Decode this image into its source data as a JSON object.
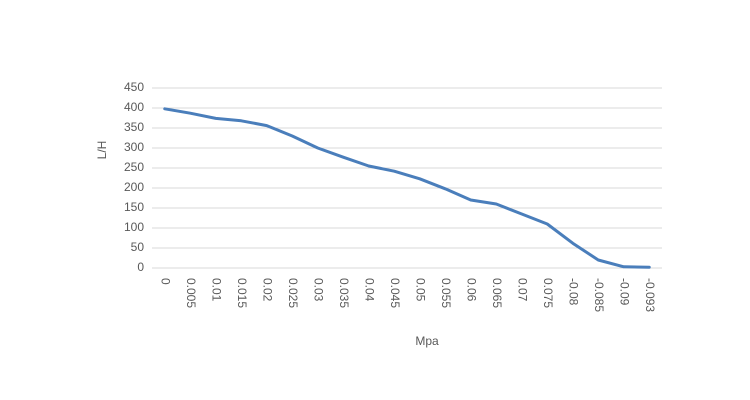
{
  "chart_data": {
    "type": "line",
    "x_label": "Mpa",
    "y_label": "L/H",
    "categories": [
      "0",
      "0.005",
      "0.01",
      "0.015",
      "0.02",
      "0.025",
      "0.03",
      "0.035",
      "0.04",
      "0.045",
      "0.05",
      "0.055",
      "0.06",
      "0.065",
      "0.07",
      "0.075",
      "-0.08",
      "-0.085",
      "-0.09",
      "-0.093"
    ],
    "values": [
      398,
      387,
      374,
      368,
      356,
      330,
      300,
      277,
      255,
      242,
      223,
      198,
      170,
      160,
      135,
      110,
      62,
      20,
      3,
      2
    ],
    "color": "#4a7ebb",
    "ylim": [
      0,
      450
    ],
    "yticks": [
      0,
      50,
      100,
      150,
      200,
      250,
      300,
      350,
      400,
      450
    ],
    "grid": true
  }
}
